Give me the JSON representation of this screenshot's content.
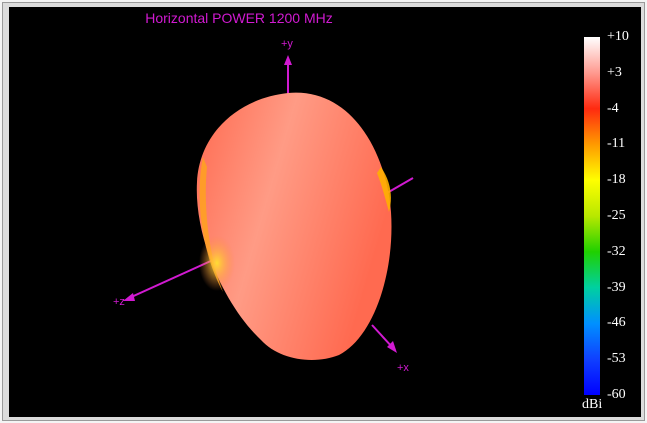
{
  "chart_data": {
    "type": "heatmap",
    "title": "Horizontal POWER 1200  MHz",
    "axes": {
      "y_label": "+y",
      "x_label": "+x",
      "z_label": "+z"
    },
    "colorbar": {
      "unit": "dBi",
      "range": [
        -60,
        10
      ],
      "ticks": [
        "+10",
        "+3",
        "-4",
        "-11",
        "-18",
        "-25",
        "-32",
        "-39",
        "-46",
        "-53",
        "-60"
      ],
      "tick_values": [
        10,
        3,
        -4,
        -11,
        -18,
        -25,
        -32,
        -39,
        -46,
        -53,
        -60
      ],
      "colors": [
        "#ffffff",
        "#ff9a90",
        "#ff2a10",
        "#ff9a00",
        "#ffff00",
        "#b8e800",
        "#20d000",
        "#00d0a0",
        "#0090ff",
        "#1040ff",
        "#0000ff"
      ]
    },
    "pattern_colors": {
      "main": "#ff6a50",
      "highlight": "#ff9b85",
      "edge": "#ffb000"
    }
  }
}
